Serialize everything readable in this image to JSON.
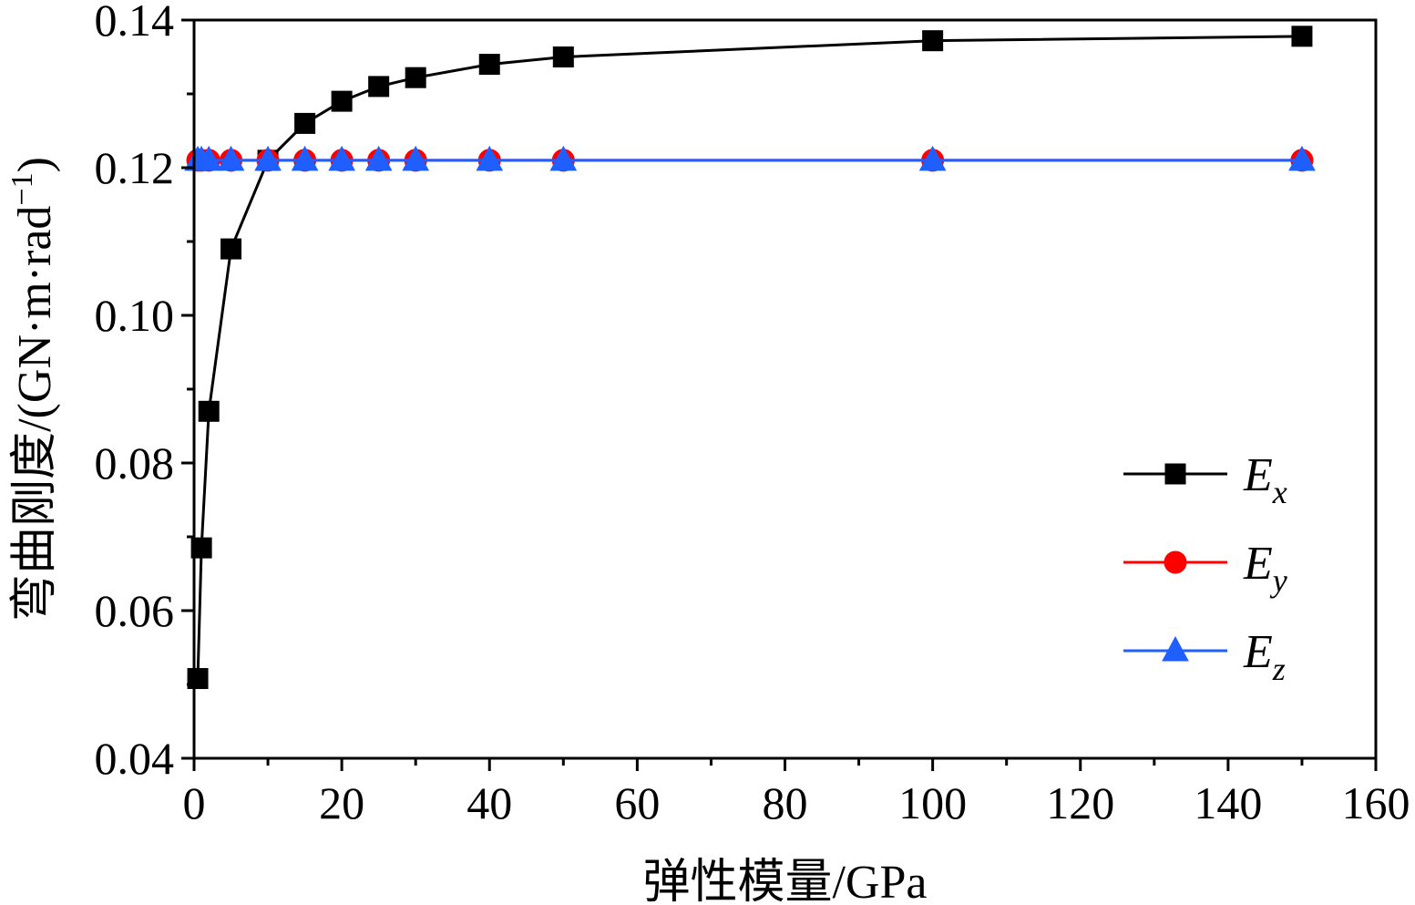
{
  "chart_data": {
    "type": "line",
    "xlabel": "弹性模量/GPa",
    "ylabel": "弯曲刚度/(GN·m·rad",
    "ylabel_sup": "−1",
    "ylabel_end": ")",
    "xlim": [
      0,
      160
    ],
    "ylim": [
      0.04,
      0.14
    ],
    "xticks": [
      0,
      20,
      40,
      60,
      80,
      100,
      120,
      140,
      160
    ],
    "xtick_labels": [
      "0",
      "20",
      "40",
      "60",
      "80",
      "100",
      "120",
      "140",
      "160"
    ],
    "yticks": [
      0.04,
      0.06,
      0.08,
      0.1,
      0.12,
      0.14
    ],
    "ytick_labels": [
      "0.04",
      "0.06",
      "0.08",
      "0.10",
      "0.12",
      "0.14"
    ],
    "grid": false,
    "legend_position": "right",
    "x": [
      0.5,
      1,
      2,
      5,
      10,
      15,
      20,
      25,
      30,
      40,
      50,
      100,
      150
    ],
    "series": [
      {
        "name": "E",
        "subscript": "x",
        "color": "#000000",
        "marker": "square",
        "values": [
          0.0508,
          0.0685,
          0.087,
          0.109,
          0.121,
          0.126,
          0.129,
          0.131,
          0.1322,
          0.134,
          0.135,
          0.1372,
          0.1378
        ]
      },
      {
        "name": "E",
        "subscript": "y",
        "color": "#ff0000",
        "marker": "circle",
        "values": [
          0.121,
          0.121,
          0.121,
          0.121,
          0.121,
          0.121,
          0.121,
          0.121,
          0.121,
          0.121,
          0.121,
          0.121,
          0.121
        ]
      },
      {
        "name": "E",
        "subscript": "z",
        "color": "#1f5fff",
        "marker": "triangle",
        "values": [
          0.121,
          0.121,
          0.121,
          0.121,
          0.121,
          0.121,
          0.121,
          0.121,
          0.121,
          0.121,
          0.121,
          0.121,
          0.121
        ]
      }
    ]
  }
}
